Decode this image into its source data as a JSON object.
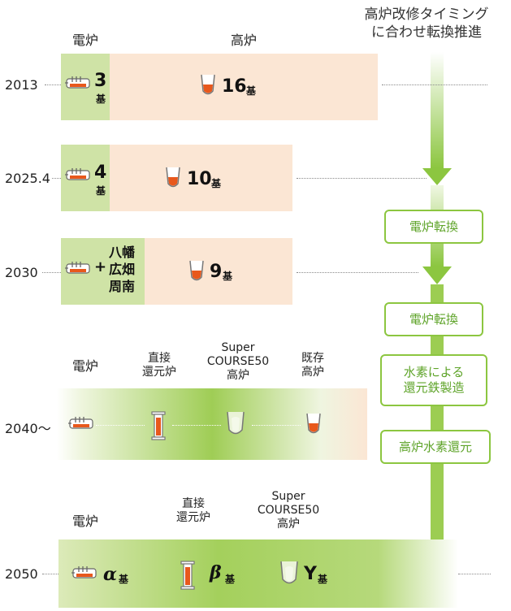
{
  "headline": [
    "高炉改修タイミング",
    "に合わせ転換推進"
  ],
  "top_headers": {
    "ef": "電炉",
    "bf": "高炉"
  },
  "rows": {
    "r2013": {
      "year": "2013",
      "ef_count": "3",
      "ef_unit": "基",
      "bf_count": "16",
      "bf_unit": "基"
    },
    "r2025": {
      "year": "2025.4",
      "ef_count": "4",
      "ef_unit": "基",
      "bf_count": "10",
      "bf_unit": "基"
    },
    "r2030": {
      "year": "2030",
      "plus": "+",
      "sites": [
        "八幡",
        "広畑",
        "周南"
      ],
      "bf_count": "9",
      "bf_unit": "基"
    },
    "r2040": {
      "year": "2040〜",
      "headers": {
        "ef": "電炉",
        "dr": [
          "直接",
          "還元炉"
        ],
        "sc": [
          "Super",
          "COURSE50",
          "高炉"
        ],
        "ex": [
          "既存",
          "高炉"
        ]
      }
    },
    "r2050": {
      "year": "2050",
      "headers": {
        "ef": "電炉",
        "dr": [
          "直接",
          "還元炉"
        ],
        "sc": [
          "Super",
          "COURSE50",
          "高炉"
        ]
      },
      "alpha": "α",
      "beta": "β",
      "gamma": "Y",
      "unit": "基"
    }
  },
  "stages": [
    "電炉転換",
    "電炉転換",
    "水素による還元鉄製造",
    "高炉水素還元"
  ],
  "stage_lines": {
    "s3": [
      "水素による",
      "還元鉄製造"
    ]
  },
  "colors": {
    "accent_green": "#8cc640",
    "ef_green": "#cfe3a6",
    "bf_peach": "#fbe6d4",
    "molten_orange": "#e8581c"
  },
  "icons": [
    "electric-furnace-icon",
    "blast-furnace-icon",
    "direct-reduction-furnace-icon",
    "super-course50-furnace-icon",
    "down-arrow-icon"
  ]
}
